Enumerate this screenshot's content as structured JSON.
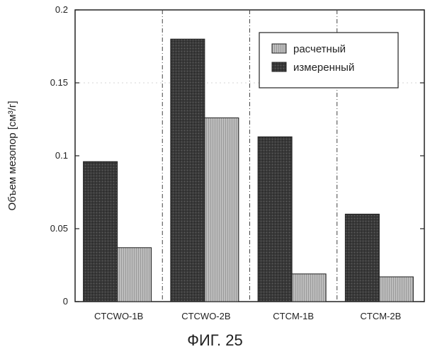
{
  "chart_data": {
    "type": "bar",
    "categories": [
      "CTCWO-1B",
      "CTCWO-2B",
      "CTCM-1B",
      "CTCM-2B"
    ],
    "series": [
      {
        "name": "измеренный",
        "values": [
          0.096,
          0.18,
          0.113,
          0.06
        ],
        "color": "#3a3a3a"
      },
      {
        "name": "расчетный",
        "values": [
          0.037,
          0.126,
          0.019,
          0.017
        ],
        "color": "#b4b4b4"
      }
    ],
    "ylabel": "Объем мезопор [см³/г]",
    "xlabel": "",
    "ylim": [
      0,
      0.2
    ],
    "yticks": [
      0,
      0.05,
      0.1,
      0.15,
      0.2
    ],
    "ytick_labels": [
      "0",
      "0.05",
      "0.1",
      "0.15",
      "0.2"
    ],
    "legend": {
      "placement": "top-right",
      "entries": [
        {
          "label": "расчетный",
          "color": "#b4b4b4"
        },
        {
          "label": "измеренный",
          "color": "#3a3a3a"
        }
      ]
    },
    "group_separators": "dashed vertical lines between categories"
  },
  "caption": "ФИГ. 25"
}
